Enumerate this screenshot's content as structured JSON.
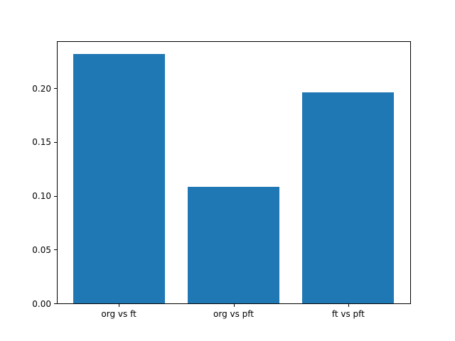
{
  "figure": {
    "background_color": "#ffffff",
    "axis_color": "#000000",
    "text_color": "#000000",
    "bar_color": "#1f77b4"
  },
  "chart_data": {
    "type": "bar",
    "title": "",
    "xlabel": "",
    "ylabel": "",
    "categories": [
      "org vs ft",
      "org vs pft",
      "ft vs pft"
    ],
    "values": [
      0.232,
      0.108,
      0.196
    ],
    "ylim": [
      0,
      0.2436
    ],
    "yticks": [
      0.0,
      0.05,
      0.1,
      0.15,
      0.2
    ],
    "ytick_labels": [
      "0.00",
      "0.05",
      "0.10",
      "0.15",
      "0.20"
    ],
    "bar_width_fraction": 0.8,
    "grid": false,
    "legend": null
  }
}
